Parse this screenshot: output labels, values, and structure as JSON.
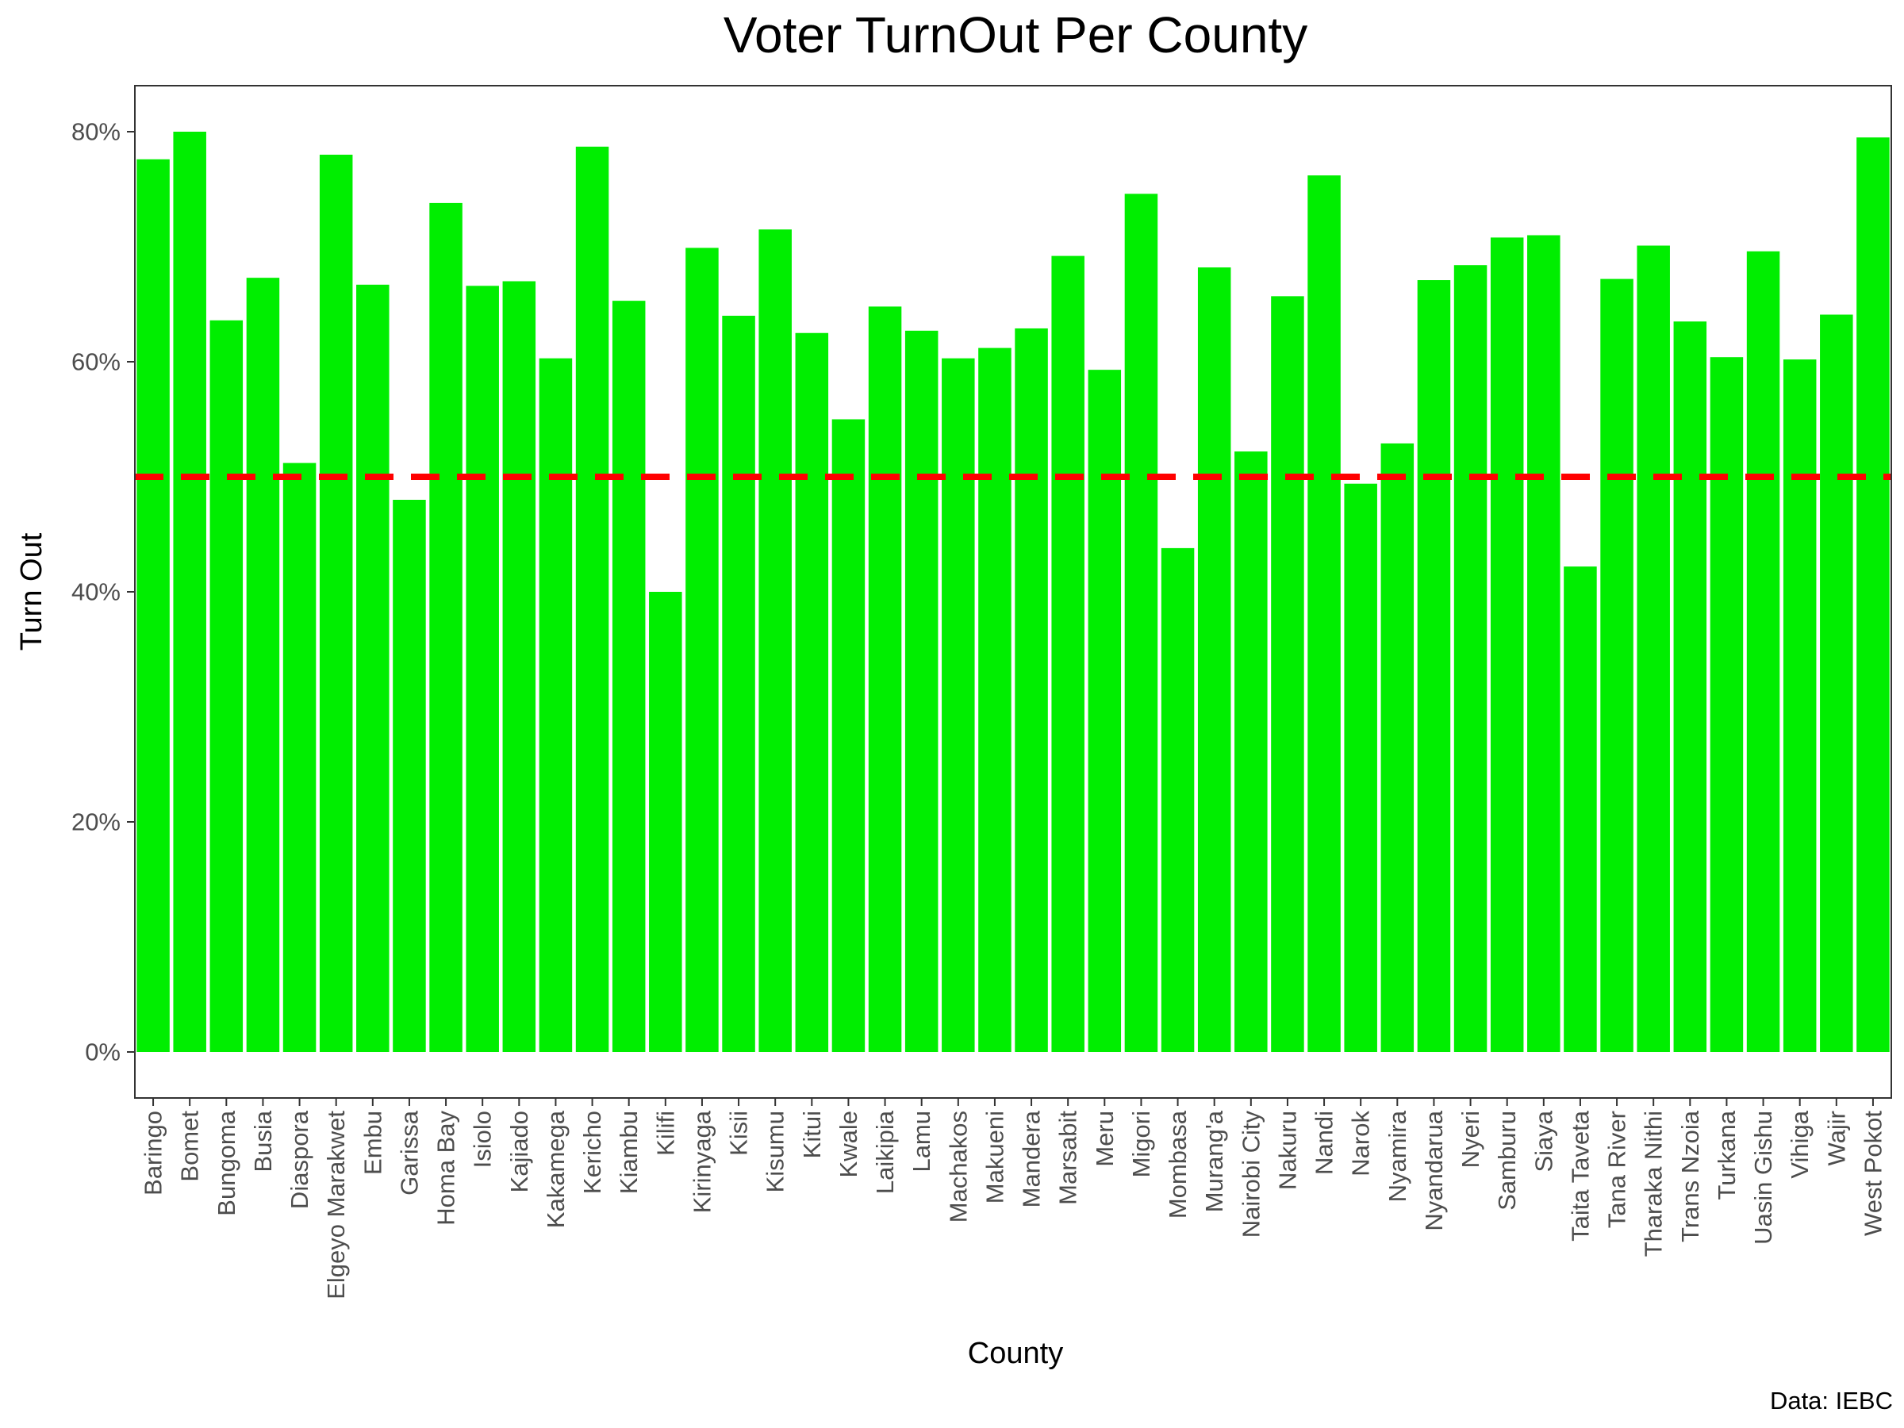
{
  "chart_data": {
    "type": "bar",
    "title": "Voter TurnOut Per County",
    "xlabel": "County",
    "ylabel": "Turn Out",
    "caption": "Data: IEBC",
    "ylim": [
      -0.04,
      0.84
    ],
    "y_ticks": [
      0,
      0.2,
      0.4,
      0.6,
      0.8
    ],
    "y_tick_labels": [
      "0%",
      "20%",
      "40%",
      "60%",
      "80%"
    ],
    "reference_line": {
      "value": 0.5,
      "style": "dashed",
      "color": "#ff0000"
    },
    "grid": false,
    "colors": {
      "bar": "#00ee00",
      "reference_line": "#ff0000",
      "panel_border": "#333333",
      "tick_text": "#4d4d4d"
    },
    "categories": [
      "Baringo",
      "Bomet",
      "Bungoma",
      "Busia",
      "Diaspora",
      "Elgeyo Marakwet",
      "Embu",
      "Garissa",
      "Homa Bay",
      "Isiolo",
      "Kajiado",
      "Kakamega",
      "Kericho",
      "Kiambu",
      "Kilifi",
      "Kirinyaga",
      "Kisii",
      "Kisumu",
      "Kitui",
      "Kwale",
      "Laikipia",
      "Lamu",
      "Machakos",
      "Makueni",
      "Mandera",
      "Marsabit",
      "Meru",
      "Migori",
      "Mombasa",
      "Murang'a",
      "Nairobi City",
      "Nakuru",
      "Nandi",
      "Narok",
      "Nyamira",
      "Nyandarua",
      "Nyeri",
      "Samburu",
      "Siaya",
      "Taita Taveta",
      "Tana River",
      "Tharaka Nithi",
      "Trans Nzoia",
      "Turkana",
      "Uasin Gishu",
      "Vihiga",
      "Wajir",
      "West Pokot"
    ],
    "values": [
      0.776,
      0.8,
      0.636,
      0.673,
      0.512,
      0.78,
      0.667,
      0.48,
      0.738,
      0.666,
      0.67,
      0.603,
      0.787,
      0.653,
      0.4,
      0.699,
      0.64,
      0.715,
      0.625,
      0.55,
      0.648,
      0.627,
      0.603,
      0.612,
      0.629,
      0.692,
      0.593,
      0.746,
      0.438,
      0.682,
      0.522,
      0.657,
      0.762,
      0.494,
      0.529,
      0.671,
      0.684,
      0.708,
      0.71,
      0.422,
      0.672,
      0.701,
      0.635,
      0.604,
      0.696,
      0.602,
      0.641,
      0.795
    ]
  }
}
